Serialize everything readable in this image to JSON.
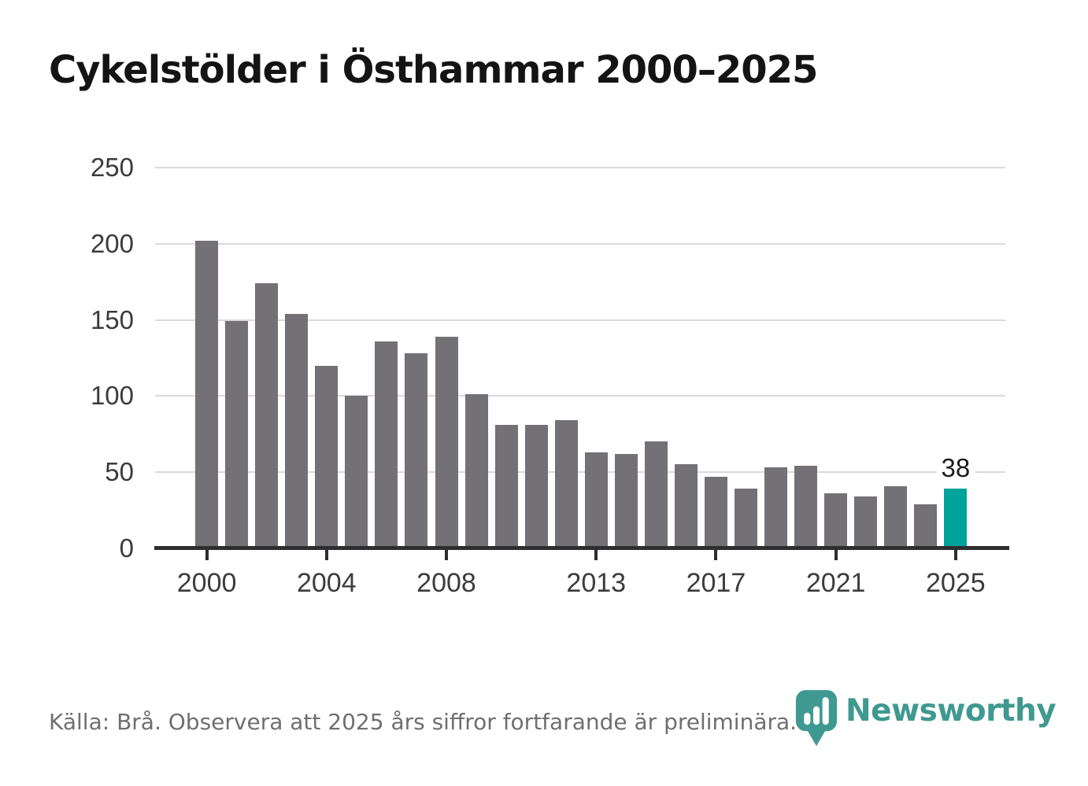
{
  "title": "Cykelstölder i Östhammar 2000–2025",
  "chart_data": {
    "type": "bar",
    "title": "Cykelstölder i Östhammar 2000–2025",
    "categories": [
      2000,
      2001,
      2002,
      2003,
      2004,
      2005,
      2006,
      2007,
      2008,
      2009,
      2010,
      2011,
      2012,
      2013,
      2014,
      2015,
      2016,
      2017,
      2018,
      2019,
      2020,
      2021,
      2022,
      2023,
      2024,
      2025
    ],
    "values": [
      201,
      148,
      173,
      153,
      119,
      99,
      135,
      127,
      138,
      100,
      80,
      80,
      83,
      62,
      61,
      69,
      54,
      46,
      38,
      52,
      53,
      35,
      33,
      40,
      28,
      38
    ],
    "xlabel": "",
    "ylabel": "",
    "ylim": [
      0,
      250
    ],
    "yticks": [
      0,
      50,
      100,
      150,
      200,
      250
    ],
    "xticks": [
      2000,
      2004,
      2008,
      2013,
      2017,
      2021,
      2025
    ],
    "grid": true,
    "legend": false,
    "highlight_category": 2025,
    "highlight_value_label": "38",
    "colors": {
      "bar": "#737076",
      "highlight": "#00a39b",
      "gridline": "#dadada",
      "axis": "#2e2e2e",
      "tick_label": "#3c3c3c",
      "value_label": "#1c1c1c"
    }
  },
  "footer": {
    "source_note": "Källa: Brå. Observera att 2025 års siffror fortfarande är preliminära.",
    "brand": "Newsworthy",
    "brand_color": "#3f9990",
    "brand_icon": "newsworthy-pin-barchart-icon"
  }
}
